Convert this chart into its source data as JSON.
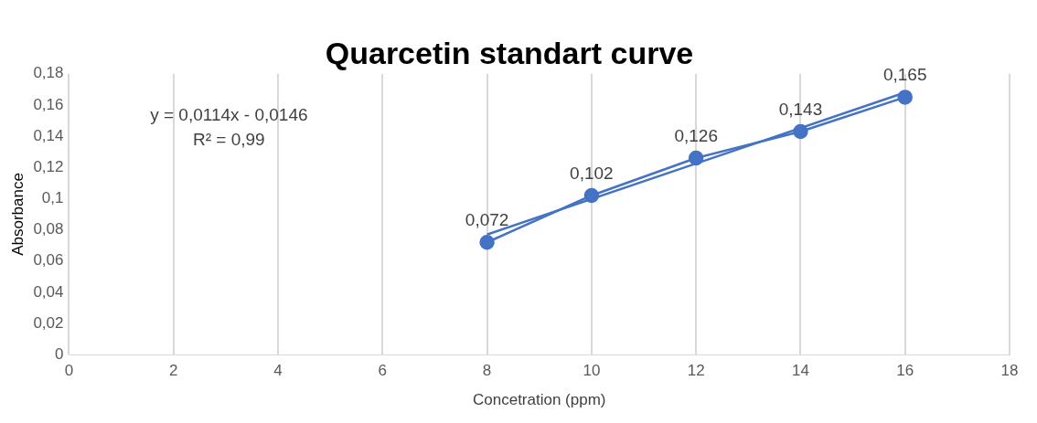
{
  "chart_data": {
    "type": "line",
    "title": "Quarcetin standart curve",
    "xlabel": "Concetration (ppm)",
    "ylabel": "Absorbance",
    "x": [
      8,
      10,
      12,
      14,
      16
    ],
    "series": [
      {
        "color": "#4472c4",
        "marker": "circle",
        "values": [
          0.072,
          0.102,
          0.126,
          0.143,
          0.165
        ],
        "value_labels": [
          "0,072",
          "0,102",
          "0,126",
          "0,143",
          "0,165"
        ]
      },
      {
        "color": "#4472c4",
        "marker": "none",
        "x": [
          8,
          16
        ],
        "values": [
          0.077,
          0.168
        ]
      }
    ],
    "xlim": [
      0,
      18
    ],
    "xticks": [
      0,
      2,
      4,
      6,
      8,
      10,
      12,
      14,
      16,
      18
    ],
    "ylim": [
      0,
      0.18
    ],
    "yticks": [
      0,
      {
        "value": 0.02,
        "label": "0,02"
      },
      {
        "value": 0.04,
        "label": "0,04"
      },
      {
        "value": 0.06,
        "label": "0,06"
      },
      {
        "value": 0.08,
        "label": "0,08"
      },
      {
        "value": 0.1,
        "label": "0,1"
      },
      {
        "value": 0.12,
        "label": "0,12"
      },
      {
        "value": 0.14,
        "label": "0,14"
      },
      {
        "value": 0.16,
        "label": "0,16"
      },
      {
        "value": 0.18,
        "label": "0,18"
      }
    ],
    "annotations": [
      "y = 0,0114x - 0,0146",
      "R² = 0,99"
    ],
    "grid": "x",
    "legend": false
  }
}
